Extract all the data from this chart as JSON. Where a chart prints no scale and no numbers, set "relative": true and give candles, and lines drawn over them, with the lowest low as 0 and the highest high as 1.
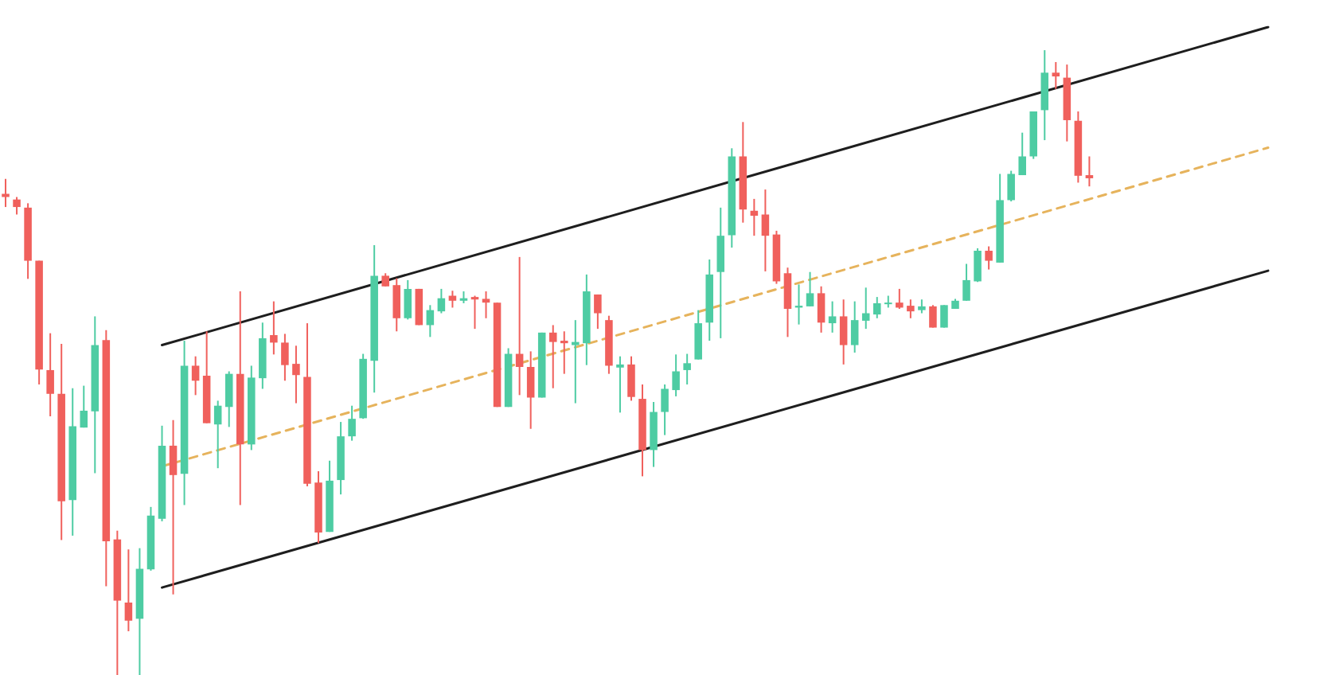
{
  "chart_data": {
    "type": "candlestick",
    "relative": true,
    "tick_labels": false,
    "marker": "none",
    "categories": [
      null,
      null,
      null,
      null,
      null,
      null,
      null,
      null,
      null,
      null,
      null,
      null,
      null,
      null,
      null,
      null,
      null,
      null,
      null,
      null,
      null,
      null,
      null,
      null,
      null,
      null,
      null,
      null,
      null,
      null,
      null,
      null,
      null,
      null,
      null,
      null,
      null,
      null,
      null,
      null,
      null,
      null,
      null,
      null,
      null,
      null,
      null,
      null,
      null,
      null,
      null,
      null,
      null,
      null,
      null,
      null,
      null,
      null,
      null,
      null,
      null,
      null,
      null,
      null,
      null,
      null,
      null,
      null,
      null,
      null,
      null,
      null,
      null,
      null,
      null,
      null,
      null,
      null,
      null,
      null,
      null,
      null,
      null,
      null,
      null,
      null,
      null,
      null,
      null,
      null,
      null,
      null,
      null,
      null,
      null,
      null,
      null,
      null,
      null,
      null,
      null,
      null,
      null,
      null,
      null,
      null,
      null,
      null,
      null,
      null,
      null,
      null,
      null,
      null
    ],
    "ohlc": [
      [
        0.77,
        0.794,
        0.749,
        0.765
      ],
      [
        0.761,
        0.765,
        0.737,
        0.749
      ],
      [
        0.748,
        0.755,
        0.634,
        0.663
      ],
      [
        0.663,
        0.663,
        0.465,
        0.489
      ],
      [
        0.488,
        0.547,
        0.414,
        0.45
      ],
      [
        0.45,
        0.53,
        0.216,
        0.278
      ],
      [
        0.28,
        0.459,
        0.223,
        0.398
      ],
      [
        0.396,
        0.463,
        0.396,
        0.423
      ],
      [
        0.422,
        0.574,
        0.323,
        0.528
      ],
      [
        0.536,
        0.552,
        0.142,
        0.214
      ],
      [
        0.217,
        0.231,
        0.0,
        0.119
      ],
      [
        0.116,
        0.201,
        0.07,
        0.087
      ],
      [
        0.09,
        0.203,
        0.0,
        0.17
      ],
      [
        0.169,
        0.269,
        0.167,
        0.255
      ],
      [
        0.25,
        0.399,
        0.246,
        0.367
      ],
      [
        0.367,
        0.408,
        0.129,
        0.32
      ],
      [
        0.322,
        0.535,
        0.272,
        0.495
      ],
      [
        0.495,
        0.51,
        0.448,
        0.471
      ],
      [
        0.479,
        0.55,
        0.403,
        0.403
      ],
      [
        0.401,
        0.439,
        0.331,
        0.431
      ],
      [
        0.429,
        0.486,
        0.397,
        0.482
      ],
      [
        0.482,
        0.614,
        0.272,
        0.369
      ],
      [
        0.369,
        0.495,
        0.36,
        0.476
      ],
      [
        0.475,
        0.564,
        0.458,
        0.539
      ],
      [
        0.544,
        0.598,
        0.513,
        0.532
      ],
      [
        0.532,
        0.546,
        0.471,
        0.496
      ],
      [
        0.498,
        0.527,
        0.435,
        0.48
      ],
      [
        0.477,
        0.563,
        0.302,
        0.306
      ],
      [
        0.308,
        0.326,
        0.211,
        0.228
      ],
      [
        0.229,
        0.343,
        0.229,
        0.311
      ],
      [
        0.312,
        0.405,
        0.289,
        0.382
      ],
      [
        0.382,
        0.431,
        0.375,
        0.41
      ],
      [
        0.411,
        0.514,
        0.41,
        0.506
      ],
      [
        0.503,
        0.688,
        0.452,
        0.639
      ],
      [
        0.639,
        0.643,
        0.622,
        0.622
      ],
      [
        0.624,
        0.635,
        0.55,
        0.571
      ],
      [
        0.571,
        0.632,
        0.569,
        0.618
      ],
      [
        0.618,
        0.618,
        0.56,
        0.56
      ],
      [
        0.56,
        0.592,
        0.541,
        0.584
      ],
      [
        0.582,
        0.618,
        0.579,
        0.603
      ],
      [
        0.607,
        0.615,
        0.588,
        0.599
      ],
      [
        0.599,
        0.614,
        0.595,
        0.603
      ],
      [
        0.605,
        0.607,
        0.554,
        0.601
      ],
      [
        0.602,
        0.614,
        0.571,
        0.596
      ],
      [
        0.596,
        0.596,
        0.429,
        0.429
      ],
      [
        0.429,
        0.523,
        0.429,
        0.514
      ],
      [
        0.514,
        0.669,
        0.448,
        0.493
      ],
      [
        0.493,
        0.518,
        0.394,
        0.444
      ],
      [
        0.444,
        0.548,
        0.444,
        0.548
      ],
      [
        0.548,
        0.56,
        0.459,
        0.533
      ],
      [
        0.535,
        0.55,
        0.482,
        0.531
      ],
      [
        0.528,
        0.568,
        0.435,
        0.533
      ],
      [
        0.531,
        0.641,
        0.496,
        0.614
      ],
      [
        0.609,
        0.609,
        0.554,
        0.579
      ],
      [
        0.568,
        0.575,
        0.482,
        0.495
      ],
      [
        0.492,
        0.51,
        0.42,
        0.497
      ],
      [
        0.497,
        0.51,
        0.439,
        0.445
      ],
      [
        0.442,
        0.465,
        0.318,
        0.36
      ],
      [
        0.36,
        0.437,
        0.333,
        0.421
      ],
      [
        0.421,
        0.465,
        0.384,
        0.458
      ],
      [
        0.456,
        0.513,
        0.446,
        0.486
      ],
      [
        0.488,
        0.514,
        0.465,
        0.499
      ],
      [
        0.505,
        0.584,
        0.505,
        0.563
      ],
      [
        0.564,
        0.665,
        0.535,
        0.641
      ],
      [
        0.645,
        0.748,
        0.539,
        0.703
      ],
      [
        0.704,
        0.843,
        0.684,
        0.83
      ],
      [
        0.83,
        0.885,
        0.724,
        0.745
      ],
      [
        0.743,
        0.762,
        0.703,
        0.735
      ],
      [
        0.737,
        0.777,
        0.646,
        0.703
      ],
      [
        0.705,
        0.711,
        0.626,
        0.63
      ],
      [
        0.643,
        0.652,
        0.541,
        0.586
      ],
      [
        0.588,
        0.625,
        0.561,
        0.591
      ],
      [
        0.59,
        0.645,
        0.59,
        0.611
      ],
      [
        0.611,
        0.622,
        0.548,
        0.564
      ],
      [
        0.563,
        0.598,
        0.548,
        0.574
      ],
      [
        0.574,
        0.601,
        0.497,
        0.528
      ],
      [
        0.528,
        0.598,
        0.516,
        0.568
      ],
      [
        0.567,
        0.62,
        0.554,
        0.579
      ],
      [
        0.577,
        0.605,
        0.571,
        0.595
      ],
      [
        0.594,
        0.607,
        0.588,
        0.596
      ],
      [
        0.596,
        0.618,
        0.586,
        0.588
      ],
      [
        0.591,
        0.601,
        0.571,
        0.582
      ],
      [
        0.584,
        0.601,
        0.579,
        0.59
      ],
      [
        0.59,
        0.592,
        0.556,
        0.556
      ],
      [
        0.556,
        0.592,
        0.556,
        0.592
      ],
      [
        0.586,
        0.602,
        0.586,
        0.599
      ],
      [
        0.599,
        0.658,
        0.599,
        0.632
      ],
      [
        0.63,
        0.683,
        0.629,
        0.679
      ],
      [
        0.679,
        0.686,
        0.649,
        0.663
      ],
      [
        0.66,
        0.802,
        0.66,
        0.76
      ],
      [
        0.76,
        0.807,
        0.758,
        0.802
      ],
      [
        0.8,
        0.868,
        0.8,
        0.83
      ],
      [
        0.83,
        0.902,
        0.826,
        0.902
      ],
      [
        0.904,
        1.0,
        0.856,
        0.964
      ],
      [
        0.964,
        0.981,
        0.938,
        0.958
      ],
      [
        0.956,
        0.977,
        0.854,
        0.888
      ],
      [
        0.887,
        0.902,
        0.788,
        0.799
      ],
      [
        0.8,
        0.83,
        0.782,
        0.795
      ],
      null,
      null,
      null,
      null,
      null,
      null,
      null,
      null,
      null,
      null,
      null,
      null,
      null,
      null,
      null,
      null
    ],
    "colors": [
      "#f0605c",
      "#f0605c",
      "#f0605c",
      "#f0605c",
      "#f0605c",
      "#f0605c",
      "#4ecca3",
      "#4ecca3",
      "#4ecca3",
      "#f0605c",
      "#f0605c",
      "#f0605c",
      "#4ecca3",
      "#4ecca3",
      "#4ecca3",
      "#f0605c",
      "#4ecca3",
      "#f0605c",
      "#f0605c",
      "#4ecca3",
      "#4ecca3",
      "#f0605c",
      "#4ecca3",
      "#4ecca3",
      "#f0605c",
      "#f0605c",
      "#f0605c",
      "#f0605c",
      "#f0605c",
      "#4ecca3",
      "#4ecca3",
      "#4ecca3",
      "#4ecca3",
      "#4ecca3",
      "#f0605c",
      "#f0605c",
      "#4ecca3",
      "#f0605c",
      "#4ecca3",
      "#4ecca3",
      "#f0605c",
      "#4ecca3",
      "#f0605c",
      "#f0605c",
      "#f0605c",
      "#4ecca3",
      "#f0605c",
      "#f0605c",
      "#4ecca3",
      "#f0605c",
      "#f0605c",
      "#4ecca3",
      "#4ecca3",
      "#f0605c",
      "#f0605c",
      "#4ecca3",
      "#f0605c",
      "#f0605c",
      "#4ecca3",
      "#4ecca3",
      "#4ecca3",
      "#4ecca3",
      "#4ecca3",
      "#4ecca3",
      "#4ecca3",
      "#4ecca3",
      "#f0605c",
      "#f0605c",
      "#f0605c",
      "#f0605c",
      "#f0605c",
      "#4ecca3",
      "#4ecca3",
      "#f0605c",
      "#4ecca3",
      "#f0605c",
      "#4ecca3",
      "#4ecca3",
      "#4ecca3",
      "#4ecca3",
      "#f0605c",
      "#f0605c",
      "#4ecca3",
      "#f0605c",
      "#4ecca3",
      "#4ecca3",
      "#4ecca3",
      "#4ecca3",
      "#f0605c",
      "#4ecca3",
      "#4ecca3",
      "#4ecca3",
      "#4ecca3",
      "#4ecca3",
      "#f0605c",
      "#f0605c",
      "#f0605c",
      "#f0605c",
      null,
      null,
      null,
      null,
      null,
      null,
      null,
      null,
      null,
      null,
      null,
      null,
      null,
      null,
      null,
      null
    ],
    "series": [
      {
        "type": "line",
        "color": "#1e1e1e",
        "line_style": "solid",
        "values": [
          null,
          null,
          null,
          null,
          null,
          null,
          null,
          null,
          null,
          null,
          null,
          null,
          null,
          null,
          0.528,
          null,
          null,
          null,
          null,
          null,
          null,
          null,
          null,
          null,
          null,
          null,
          null,
          null,
          null,
          null,
          null,
          null,
          null,
          null,
          null,
          null,
          null,
          null,
          null,
          null,
          null,
          null,
          null,
          null,
          null,
          null,
          null,
          null,
          null,
          null,
          null,
          null,
          null,
          null,
          null,
          null,
          null,
          null,
          null,
          null,
          null,
          null,
          null,
          null,
          null,
          null,
          null,
          null,
          null,
          null,
          null,
          null,
          null,
          null,
          null,
          null,
          null,
          null,
          null,
          null,
          null,
          null,
          null,
          null,
          null,
          null,
          null,
          null,
          null,
          null,
          null,
          null,
          null,
          null,
          null,
          null,
          null,
          null,
          null,
          null,
          null,
          null,
          null,
          null,
          null,
          null,
          null,
          null,
          null,
          null,
          null,
          null,
          null,
          1.037
        ]
      },
      {
        "type": "line",
        "color": "#e6b35c",
        "line_style": "dashed",
        "values": [
          null,
          null,
          null,
          null,
          null,
          null,
          null,
          null,
          null,
          null,
          null,
          null,
          null,
          null,
          0.334,
          null,
          null,
          null,
          null,
          null,
          null,
          null,
          null,
          null,
          null,
          null,
          null,
          null,
          null,
          null,
          null,
          null,
          null,
          null,
          null,
          null,
          null,
          null,
          null,
          null,
          null,
          null,
          null,
          null,
          null,
          null,
          null,
          null,
          null,
          null,
          null,
          null,
          null,
          null,
          null,
          null,
          null,
          null,
          null,
          null,
          null,
          null,
          null,
          null,
          null,
          null,
          null,
          null,
          null,
          null,
          null,
          null,
          null,
          null,
          null,
          null,
          null,
          null,
          null,
          null,
          null,
          null,
          null,
          null,
          null,
          null,
          null,
          null,
          null,
          null,
          null,
          null,
          null,
          null,
          null,
          null,
          null,
          null,
          null,
          null,
          null,
          null,
          null,
          null,
          null,
          null,
          null,
          null,
          null,
          null,
          null,
          null,
          null,
          0.844
        ]
      },
      {
        "type": "line",
        "color": "#1e1e1e",
        "line_style": "solid",
        "values": [
          null,
          null,
          null,
          null,
          null,
          null,
          null,
          null,
          null,
          null,
          null,
          null,
          null,
          null,
          0.14,
          null,
          null,
          null,
          null,
          null,
          null,
          null,
          null,
          null,
          null,
          null,
          null,
          null,
          null,
          null,
          null,
          null,
          null,
          null,
          null,
          null,
          null,
          null,
          null,
          null,
          null,
          null,
          null,
          null,
          null,
          null,
          null,
          null,
          null,
          null,
          null,
          null,
          null,
          null,
          null,
          null,
          null,
          null,
          null,
          null,
          null,
          null,
          null,
          null,
          null,
          null,
          null,
          null,
          null,
          null,
          null,
          null,
          null,
          null,
          null,
          null,
          null,
          null,
          null,
          null,
          null,
          null,
          null,
          null,
          null,
          null,
          null,
          null,
          null,
          null,
          null,
          null,
          null,
          null,
          null,
          null,
          null,
          null,
          null,
          null,
          null,
          null,
          null,
          null,
          null,
          null,
          null,
          null,
          null,
          null,
          null,
          null,
          null,
          0.647
        ]
      }
    ]
  }
}
